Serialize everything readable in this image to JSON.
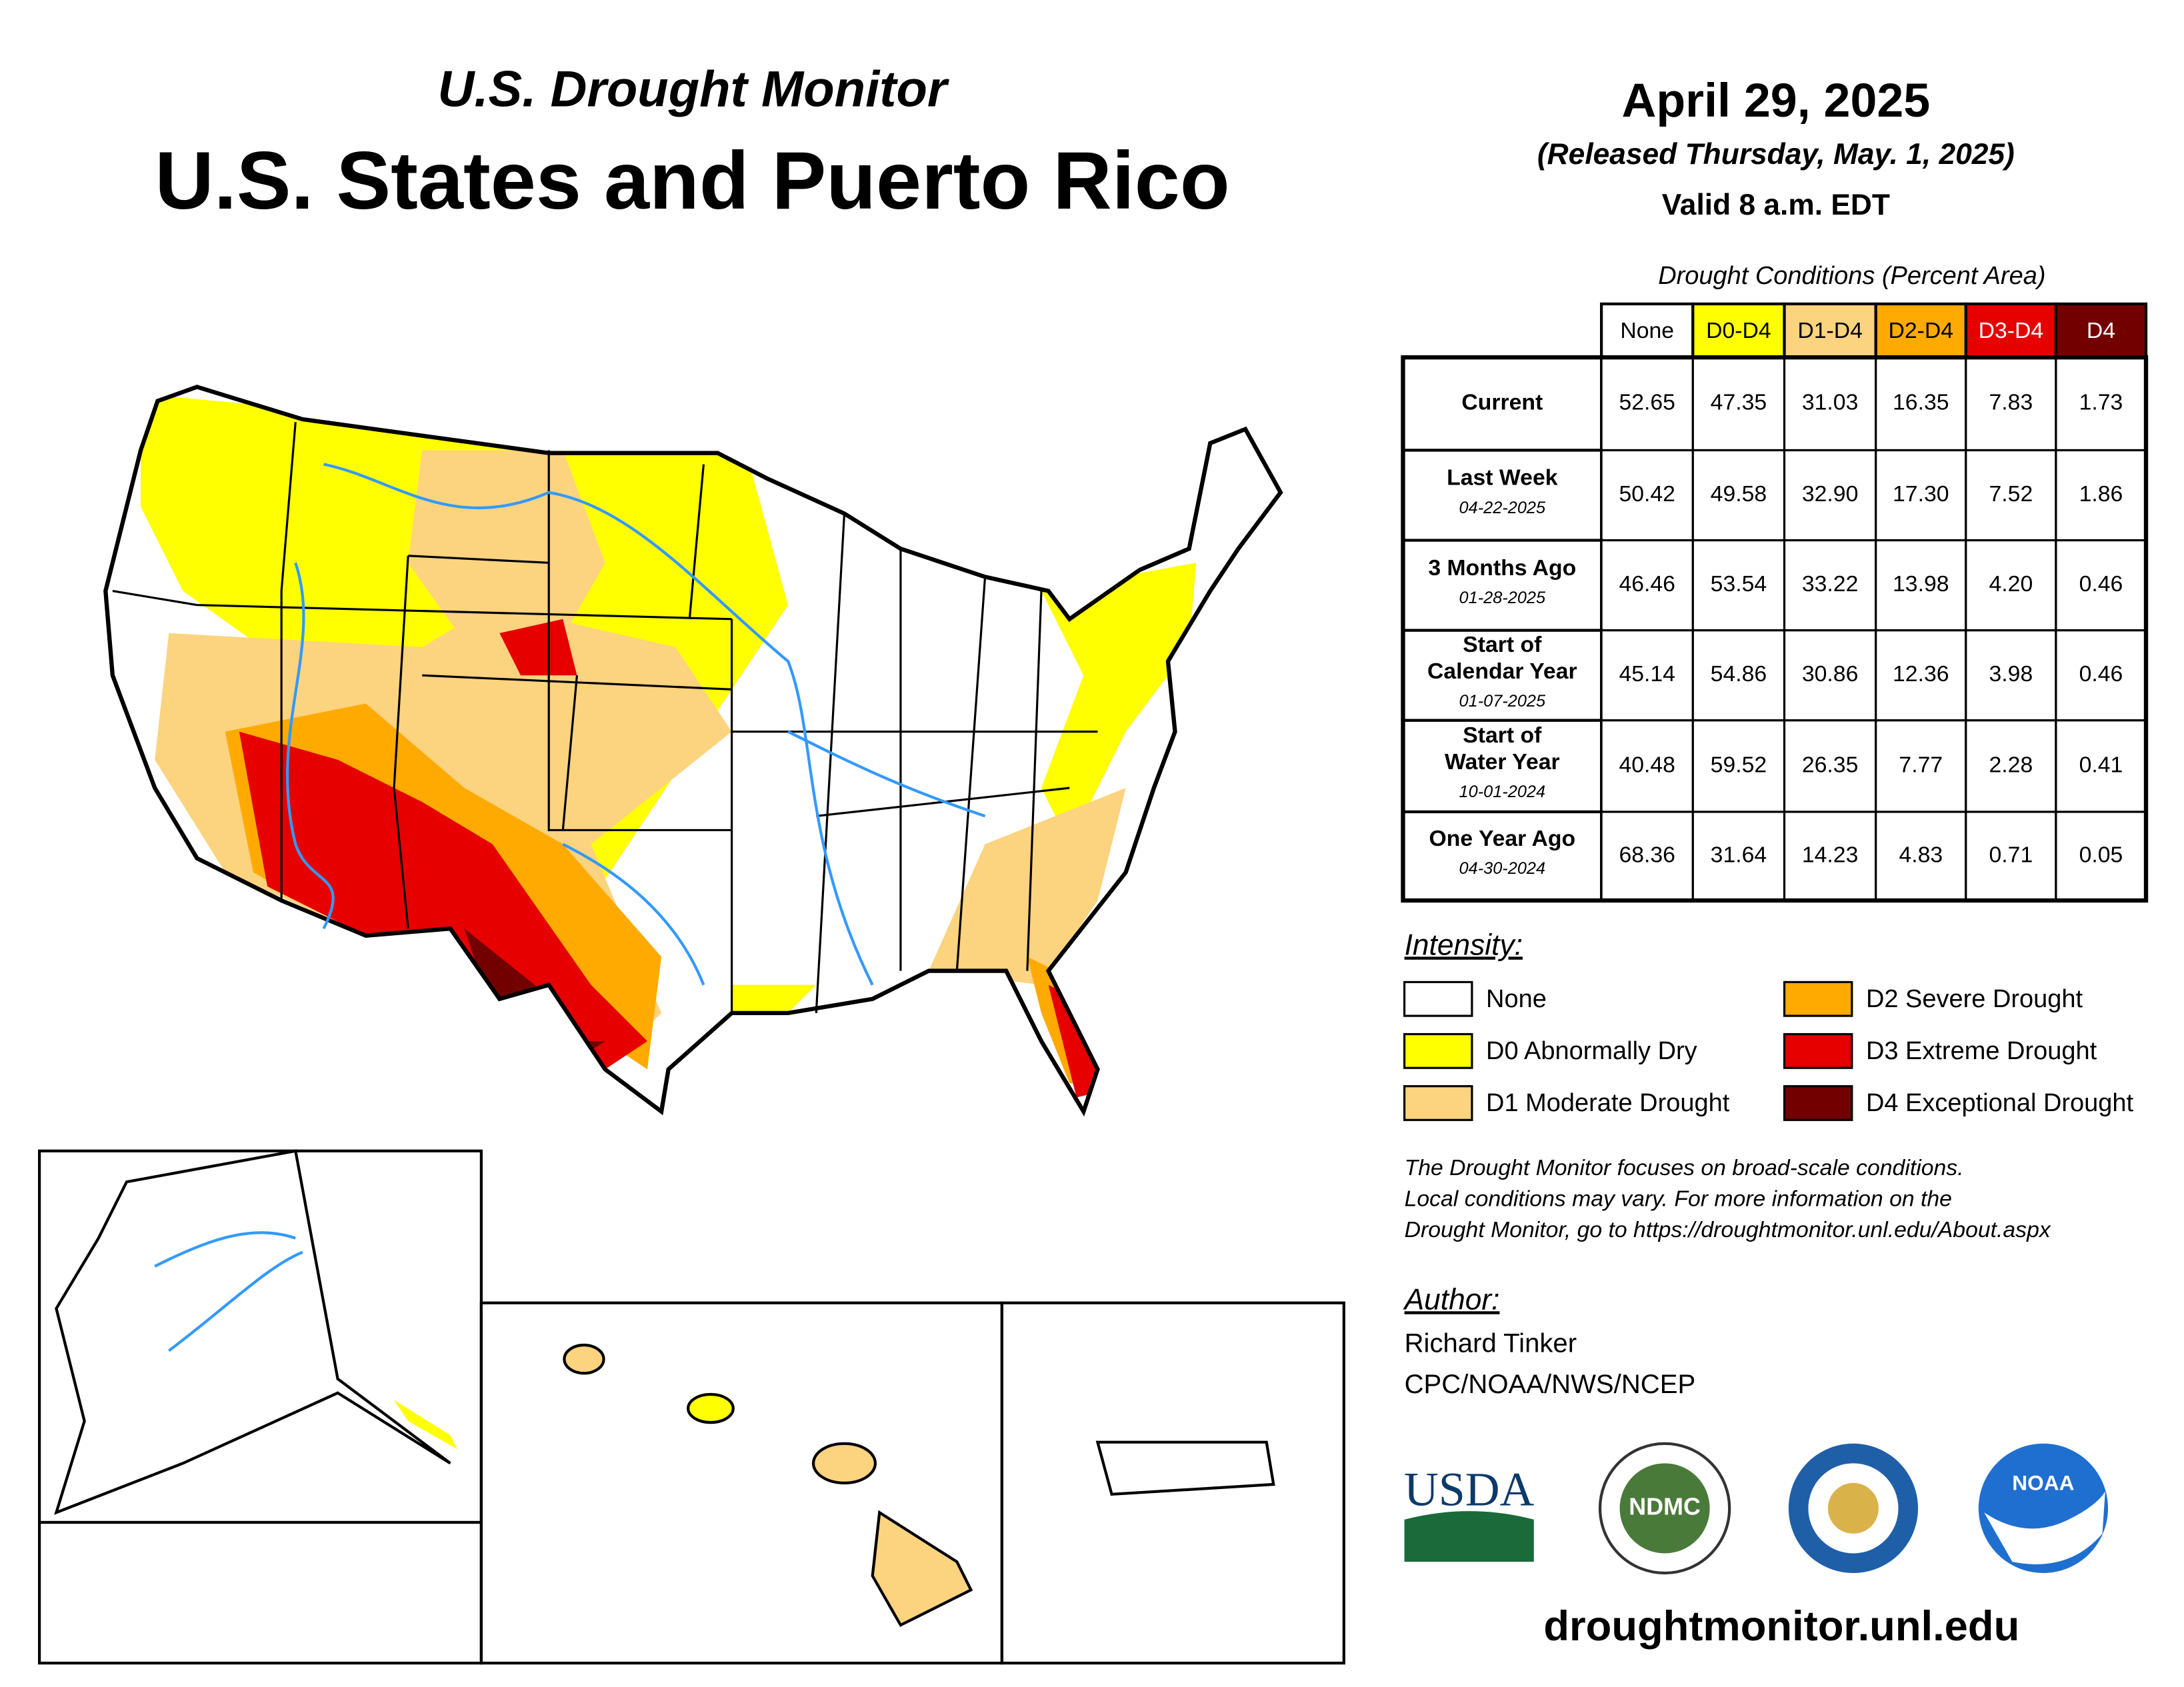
{
  "header": {
    "subtitle": "U.S. Drought Monitor",
    "title": "U.S. States and Puerto Rico",
    "date": "April 29, 2025",
    "released": "(Released Thursday, May. 1, 2025)",
    "valid": "Valid 8 a.m. EDT"
  },
  "table": {
    "caption": "Drought Conditions (Percent Area)",
    "columns": [
      "None",
      "D0-D4",
      "D1-D4",
      "D2-D4",
      "D3-D4",
      "D4"
    ],
    "rows": [
      {
        "label": [
          "Current"
        ],
        "values": [
          "52.65",
          "47.35",
          "31.03",
          "16.35",
          "7.83",
          "1.73"
        ]
      },
      {
        "label": [
          "Last Week"
        ],
        "date": "04-22-2025",
        "values": [
          "50.42",
          "49.58",
          "32.90",
          "17.30",
          "7.52",
          "1.86"
        ]
      },
      {
        "label": [
          "3 Months Ago"
        ],
        "date": "01-28-2025",
        "values": [
          "46.46",
          "53.54",
          "33.22",
          "13.98",
          "4.20",
          "0.46"
        ]
      },
      {
        "label": [
          "Start of",
          "Calendar Year"
        ],
        "date": "01-07-2025",
        "values": [
          "45.14",
          "54.86",
          "30.86",
          "12.36",
          "3.98",
          "0.46"
        ]
      },
      {
        "label": [
          "Start of",
          "Water Year"
        ],
        "date": "10-01-2024",
        "values": [
          "40.48",
          "59.52",
          "26.35",
          "7.77",
          "2.28",
          "0.41"
        ]
      },
      {
        "label": [
          "One Year Ago"
        ],
        "date": "04-30-2024",
        "values": [
          "68.36",
          "31.64",
          "14.23",
          "4.83",
          "0.71",
          "0.05"
        ]
      }
    ]
  },
  "legend": {
    "title": "Intensity:",
    "items": [
      {
        "label": "None",
        "color": "#ffffff"
      },
      {
        "label": "D0 Abnormally Dry",
        "color": "#ffff00"
      },
      {
        "label": "D1 Moderate Drought",
        "color": "#fcd37f"
      },
      {
        "label": "D2 Severe Drought",
        "color": "#ffaa00"
      },
      {
        "label": "D3 Extreme Drought",
        "color": "#e60000"
      },
      {
        "label": "D4 Exceptional Drought",
        "color": "#730000"
      }
    ]
  },
  "note": [
    "The Drought Monitor focuses on broad-scale conditions.",
    "Local conditions may vary. For more information on the",
    "Drought Monitor, go to https://droughtmonitor.unl.edu/About.aspx"
  ],
  "author": {
    "title": "Author:",
    "name": "Richard Tinker",
    "org": "CPC/NOAA/NWS/NCEP"
  },
  "logos": {
    "usda": "USDA",
    "ndmc": "NDMC",
    "noaa": "NOAA"
  },
  "url": "droughtmonitor.unl.edu"
}
